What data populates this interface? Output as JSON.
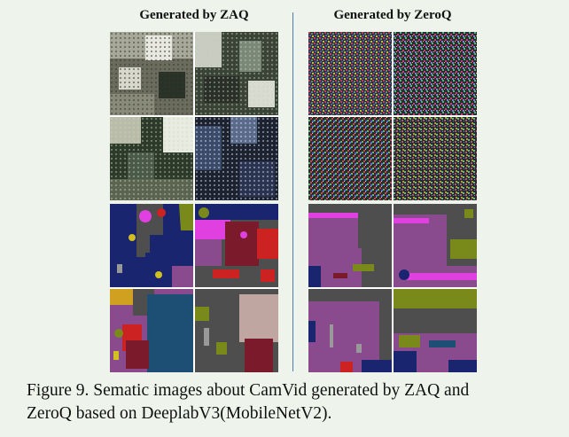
{
  "figure": {
    "left_title": "Generated by ZAQ",
    "right_title": "Generated by ZeroQ",
    "caption_line1": "Figure 9. Sematic images about CamVid generated by ZAQ and",
    "caption_line2": "ZeroQ based on DeeplabV3(MobileNetV2)."
  },
  "palette": {
    "road": "#8a4a8e",
    "building": "#4e4e4e",
    "sky": "#1a2570",
    "tree": "#7a8a1a",
    "sign": "#cc2222",
    "car": "#7a1a2a",
    "pedestrian": "#e040e0",
    "fence": "#1d4e73",
    "pole": "#999999",
    "divider": "#4a7fb5",
    "background": "#eef4ec"
  }
}
